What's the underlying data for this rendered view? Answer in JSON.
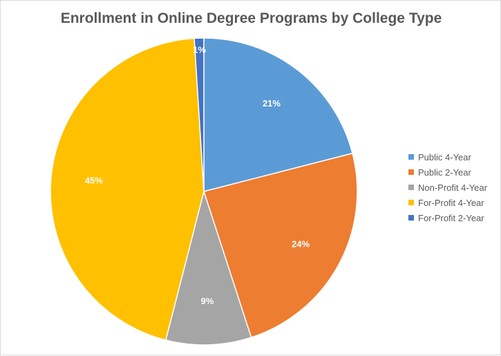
{
  "chart_data": {
    "type": "pie",
    "title": "Enrollment in Online Degree Programs by College Type",
    "categories": [
      "Public 4-Year",
      "Public 2-Year",
      "Non-Profit 4-Year",
      "For-Profit 4-Year",
      "For-Profit 2-Year"
    ],
    "values": [
      21,
      24,
      9,
      45,
      1
    ],
    "labels": [
      "21%",
      "24%",
      "9%",
      "45%",
      "1%"
    ],
    "colors": [
      "#5b9bd5",
      "#ed7d31",
      "#a5a5a5",
      "#ffc000",
      "#4472c4"
    ],
    "legend_position": "right",
    "start_angle_deg": 0,
    "direction": "clockwise"
  }
}
